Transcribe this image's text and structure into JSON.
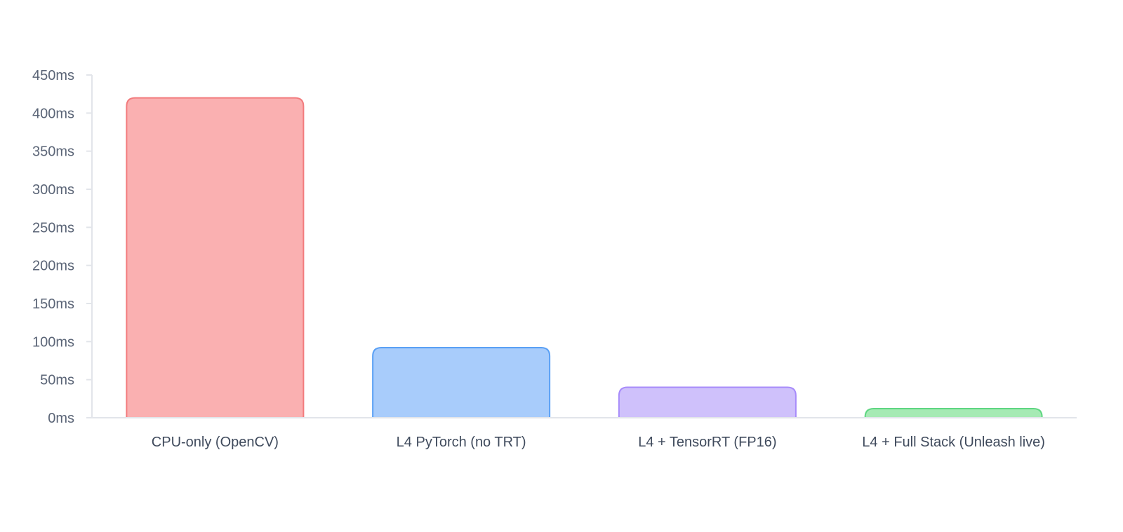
{
  "chart_data": {
    "type": "bar",
    "title": "",
    "xlabel": "",
    "ylabel": "",
    "categories": [
      "CPU-only (OpenCV)",
      "L4 PyTorch (no TRT)",
      "L4 + TensorRT (FP16)",
      "L4 + Full Stack (Unleash live)"
    ],
    "values": [
      420,
      92,
      40,
      12
    ],
    "ylim": [
      0,
      450
    ],
    "yticks": [
      0,
      50,
      100,
      150,
      200,
      250,
      300,
      350,
      400,
      450
    ],
    "ytick_labels": [
      "0ms",
      "50ms",
      "100ms",
      "150ms",
      "200ms",
      "250ms",
      "300ms",
      "350ms",
      "400ms",
      "450ms"
    ],
    "grid": false,
    "legend": "none",
    "colors": {
      "fills": [
        "#fab0b1",
        "#a8ccfb",
        "#cfc1fb",
        "#a6eab4"
      ],
      "strokes": [
        "#f27b7d",
        "#5aa0f5",
        "#a78bfa",
        "#5fd682"
      ],
      "axis": "#e2e5ea",
      "tick_text": "#5b6577",
      "label_text": "#3f4a5c"
    }
  }
}
